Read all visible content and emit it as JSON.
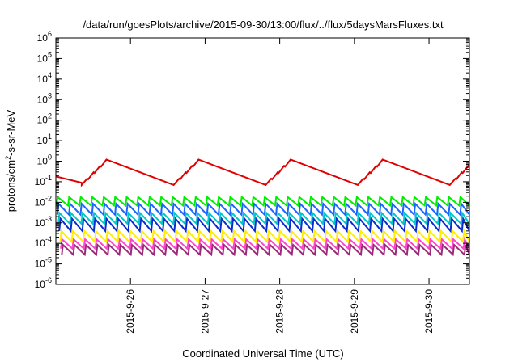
{
  "chart_data": {
    "type": "line",
    "title": "/data/run/goesPlots/archive/2015-09-30/13:00/flux/../flux/5daysMarsFluxes.txt",
    "xlabel": "Coordinated Universal Time (UTC)",
    "ylabel_parts": [
      "protons/cm",
      "2",
      "-s-sr-MeV"
    ],
    "y_scale": "log",
    "ylim": [
      1e-06,
      1000000.0
    ],
    "y_ticks": [
      {
        "base": "10",
        "exp": "-6",
        "value": 1e-06
      },
      {
        "base": "10",
        "exp": "-5",
        "value": 1e-05
      },
      {
        "base": "10",
        "exp": "-4",
        "value": 0.0001
      },
      {
        "base": "10",
        "exp": "-3",
        "value": 0.001
      },
      {
        "base": "10",
        "exp": "-2",
        "value": 0.01
      },
      {
        "base": "10",
        "exp": "-1",
        "value": 0.1
      },
      {
        "base": "10",
        "exp": "0",
        "value": 1
      },
      {
        "base": "10",
        "exp": "1",
        "value": 10.0
      },
      {
        "base": "10",
        "exp": "2",
        "value": 100.0
      },
      {
        "base": "10",
        "exp": "3",
        "value": 1000.0
      },
      {
        "base": "10",
        "exp": "4",
        "value": 10000.0
      },
      {
        "base": "10",
        "exp": "5",
        "value": 100000.0
      },
      {
        "base": "10",
        "exp": "6",
        "value": 1000000.0
      }
    ],
    "xlim": [
      "2015-09-25 00:00",
      "2015-09-30 13:00"
    ],
    "x_ticks": [
      {
        "label": "2015-9-26",
        "value": "2015-09-26 00:00"
      },
      {
        "label": "2015-9-27",
        "value": "2015-09-27 00:00"
      },
      {
        "label": "2015-9-28",
        "value": "2015-09-28 00:00"
      },
      {
        "label": "2015-9-29",
        "value": "2015-09-29 00:00"
      },
      {
        "label": "2015-9-30",
        "value": "2015-09-30 00:00"
      }
    ],
    "grid": false,
    "legend": "none",
    "series": [
      {
        "color": "#e00000",
        "period_hours": 29.6,
        "phase_hours": 8.3,
        "rises": 4,
        "min": 0.07,
        "max": 1.2,
        "lead_in": {
          "from": 0.18,
          "to": 0.09
        }
      },
      {
        "color": "#00ee00",
        "period_hours": 3.7,
        "phase_hours": 0.2,
        "min": 0.007,
        "max": 0.018
      },
      {
        "color": "#1a66ff",
        "period_hours": 3.7,
        "phase_hours": 0.5,
        "min": 0.0025,
        "max": 0.0085
      },
      {
        "color": "#00c8c8",
        "period_hours": 3.7,
        "phase_hours": 0.8,
        "min": 0.0009,
        "max": 0.003
      },
      {
        "color": "#0a2bd0",
        "period_hours": 3.7,
        "phase_hours": 1.1,
        "min": 0.0004,
        "max": 0.0016
      },
      {
        "color": "#ffee00",
        "period_hours": 3.7,
        "phase_hours": 1.4,
        "min": 0.00012,
        "max": 0.0004
      },
      {
        "color": "#ff44cc",
        "period_hours": 3.7,
        "phase_hours": 1.6,
        "min": 5.5e-05,
        "max": 0.00016
      },
      {
        "color": "#9b2a78",
        "period_hours": 3.7,
        "phase_hours": 1.9,
        "min": 2.8e-05,
        "max": 8.5e-05
      }
    ]
  }
}
